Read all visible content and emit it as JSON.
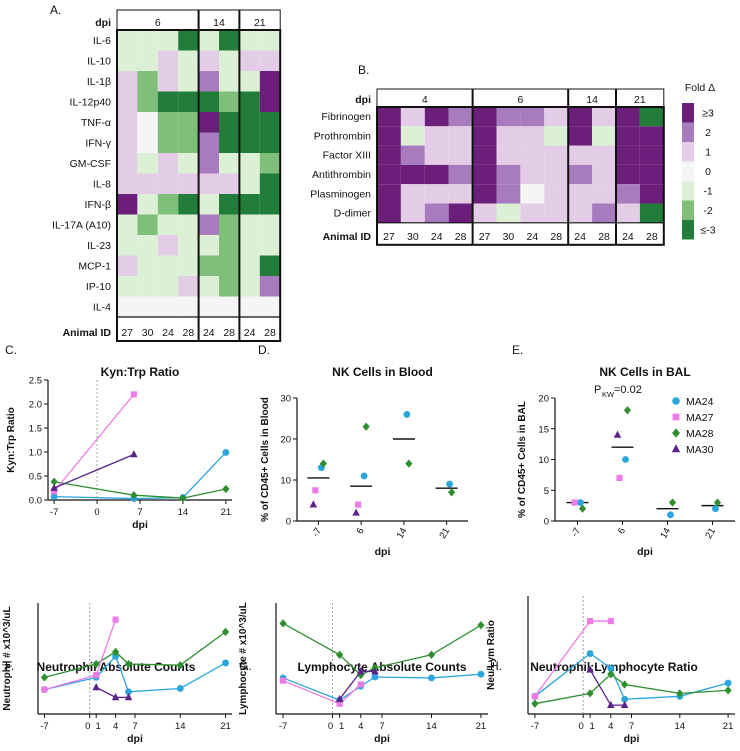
{
  "colors": {
    "pos3": "#6b1f7a",
    "pos2": "#a77bbd",
    "pos1": "#e3cde6",
    "zero": "#f5f5f5",
    "neg1": "#dcf0d6",
    "neg2": "#7fbf7a",
    "neg3": "#237d3a",
    "MA24": "#2aa6dd",
    "MA27": "#ee7ae6",
    "MA28": "#2f8f2f",
    "MA30": "#5b2487"
  },
  "chart_data": [
    {
      "panel": "A.",
      "type": "heatmap",
      "row_header": "dpi",
      "footer_label": "Animal ID",
      "dpi_groups": [
        "6",
        "14",
        "21"
      ],
      "animal_ids": [
        "27",
        "30",
        "24",
        "28",
        "24",
        "28",
        "24",
        "28"
      ],
      "rows": [
        "IL-6",
        "IL-10",
        "IL-1β",
        "IL-12p40",
        "TNF-α",
        "IFN-γ",
        "GM-CSF",
        "IL-8",
        "IFN-β",
        "IL-17A (A10)",
        "IL-23",
        "MCP-1",
        "IP-10",
        "IL-4"
      ],
      "values": [
        [
          -1,
          -1,
          -1,
          -3,
          -1,
          -3,
          -1,
          -1
        ],
        [
          -1,
          -1,
          1,
          -1,
          1,
          -1,
          1,
          1
        ],
        [
          1,
          -2,
          1,
          -1,
          2,
          -1,
          -1,
          3
        ],
        [
          1,
          -2,
          -3,
          -3,
          -3,
          -2,
          -3,
          3
        ],
        [
          1,
          0,
          -2,
          -2,
          3,
          -3,
          -3,
          -3
        ],
        [
          1,
          0,
          -2,
          -2,
          2,
          -3,
          -3,
          -3
        ],
        [
          1,
          -1,
          1,
          -1,
          2,
          -1,
          -1,
          -2
        ],
        [
          1,
          1,
          1,
          1,
          1,
          1,
          -1,
          -3
        ],
        [
          3,
          -1,
          -2,
          -3,
          -1,
          -3,
          -3,
          -3
        ],
        [
          -1,
          -2,
          -1,
          -1,
          2,
          -2,
          -1,
          -1
        ],
        [
          -1,
          -1,
          1,
          -1,
          -1,
          -2,
          -1,
          -1
        ],
        [
          1,
          -1,
          -1,
          -1,
          -2,
          -2,
          -1,
          -3
        ],
        [
          -1,
          -1,
          -1,
          1,
          -1,
          -2,
          -1,
          2
        ],
        [
          0,
          0,
          0,
          0,
          0,
          0,
          0,
          0
        ]
      ]
    },
    {
      "panel": "B.",
      "type": "heatmap",
      "row_header": "dpi",
      "footer_label": "Animal ID",
      "dpi_groups": [
        "4",
        "6",
        "14",
        "21"
      ],
      "animal_ids": [
        "27",
        "30",
        "24",
        "28",
        "27",
        "30",
        "24",
        "28",
        "24",
        "28",
        "24",
        "28"
      ],
      "rows": [
        "Fibrinogen",
        "Prothrombin",
        "Factor XIII",
        "Antithrombin",
        "Plasminogen",
        "D-dimer"
      ],
      "values": [
        [
          3,
          1,
          3,
          2,
          3,
          2,
          2,
          1,
          3,
          1,
          3,
          -3
        ],
        [
          3,
          -1,
          1,
          1,
          3,
          1,
          1,
          -1,
          3,
          -1,
          3,
          3
        ],
        [
          3,
          2,
          1,
          1,
          3,
          1,
          1,
          1,
          1,
          1,
          3,
          3
        ],
        [
          3,
          3,
          3,
          2,
          3,
          2,
          1,
          1,
          2,
          1,
          3,
          3
        ],
        [
          3,
          1,
          1,
          1,
          3,
          2,
          0,
          1,
          1,
          1,
          2,
          3
        ],
        [
          3,
          1,
          2,
          3,
          1,
          -1,
          1,
          1,
          1,
          2,
          1,
          -3
        ]
      ],
      "legend_title": "Fold Δ",
      "legend_labels": [
        "≥3",
        "2",
        "1",
        "0",
        "-1",
        "-2",
        "≤-3"
      ]
    },
    {
      "panel": "C.",
      "type": "line",
      "title": "Kyn:Trp Ratio",
      "xlabel": "dpi",
      "ylabel": "Kyn:Trp Ratio",
      "xlim": [
        -8,
        22
      ],
      "ylim": [
        0,
        2.5
      ],
      "xticks": [
        -7,
        0,
        7,
        14,
        21
      ],
      "yticks": [
        0,
        0.5,
        1,
        1.5,
        2,
        2.5
      ],
      "ytick_labels": [
        "0.0",
        "0.5",
        "1.0",
        "1.5",
        "2.0",
        "2.5"
      ],
      "vline": 0,
      "series": [
        {
          "name": "MA24",
          "x": [
            -7,
            6,
            14,
            21
          ],
          "y": [
            0.07,
            0.03,
            0.05,
            0.99
          ]
        },
        {
          "name": "MA28",
          "x": [
            -7,
            6,
            14,
            21
          ],
          "y": [
            0.38,
            0.1,
            0.04,
            0.23
          ]
        },
        {
          "name": "MA27",
          "x": [
            -7,
            6
          ],
          "y": [
            0.18,
            2.2
          ]
        },
        {
          "name": "MA30",
          "x": [
            -7,
            6
          ],
          "y": [
            0.25,
            0.95
          ]
        }
      ]
    },
    {
      "panel": "D.",
      "type": "scatter",
      "title": "NK Cells in Blood",
      "xlabel": "dpi",
      "ylabel": "% of CD45+ Cells in Blood",
      "categories": [
        "-7",
        "6",
        "14",
        "21"
      ],
      "ylim": [
        0,
        30
      ],
      "yticks": [
        0,
        10,
        20,
        30
      ],
      "medians": [
        10.5,
        8.5,
        20,
        8
      ],
      "series": [
        {
          "name": "MA24",
          "values": [
            13,
            11,
            26,
            9
          ]
        },
        {
          "name": "MA27",
          "values": [
            7.5,
            4,
            null,
            null
          ]
        },
        {
          "name": "MA28",
          "values": [
            14,
            23,
            14,
            7
          ]
        },
        {
          "name": "MA30",
          "values": [
            4,
            2,
            null,
            null
          ]
        }
      ]
    },
    {
      "panel": "E.",
      "type": "scatter",
      "title": "NK Cells in BAL",
      "xlabel": "dpi",
      "ylabel": "% of CD45+ Cells in BAL",
      "annotation_main": "P",
      "annotation_sub": "KW",
      "annotation_rest": "=0.02",
      "categories": [
        "-7",
        "6",
        "14",
        "21"
      ],
      "ylim": [
        0,
        20
      ],
      "yticks": [
        0,
        5,
        10,
        15,
        20
      ],
      "medians": [
        3,
        12,
        2,
        2.5
      ],
      "series": [
        {
          "name": "MA24",
          "values": [
            3,
            10,
            1,
            2
          ]
        },
        {
          "name": "MA27",
          "values": [
            3,
            7,
            null,
            null
          ]
        },
        {
          "name": "MA28",
          "values": [
            2,
            18,
            3,
            3
          ]
        },
        {
          "name": "MA30",
          "values": [
            null,
            14,
            null,
            null
          ]
        }
      ],
      "legend": [
        "MA24",
        "MA27",
        "MA28",
        "MA30"
      ]
    },
    {
      "panel": "F.",
      "type": "line",
      "title": "Neutrophil Absolute Counts",
      "xlabel": "dpi",
      "ylabel": "Neutrophil # x10^3/uL",
      "xlim": [
        -8,
        22
      ],
      "ylim": [
        0,
        10
      ],
      "xticks": [
        -7,
        0,
        1,
        4,
        7,
        14,
        21
      ],
      "xtick_labels": [
        "-7",
        "0",
        "1",
        "4",
        "7",
        "14",
        "21"
      ],
      "vline": 0,
      "series": [
        {
          "name": "MA24",
          "x": [
            -7,
            1,
            4,
            6,
            14,
            21
          ],
          "y": [
            2.2,
            3.3,
            5.2,
            2.0,
            2.3,
            4.6
          ]
        },
        {
          "name": "MA28",
          "x": [
            -7,
            1,
            4,
            6,
            14,
            21
          ],
          "y": [
            3.3,
            4.5,
            5.6,
            4.5,
            4.4,
            7.4
          ]
        },
        {
          "name": "MA27",
          "x": [
            -7,
            1,
            4
          ],
          "y": [
            2.2,
            3.5,
            8.5
          ]
        },
        {
          "name": "MA30",
          "x": [
            1,
            4,
            6
          ],
          "y": [
            2.4,
            1.5,
            1.5
          ]
        }
      ]
    },
    {
      "panel": "G.",
      "type": "line",
      "title": "Lymphocyte Absolute Counts",
      "xlabel": "dpi",
      "ylabel": "Lymphocyte # x10^3/uL",
      "xlim": [
        -8,
        22
      ],
      "ylim": [
        0,
        6
      ],
      "xticks": [
        -7,
        0,
        1,
        4,
        7,
        14,
        21
      ],
      "xtick_labels": [
        "-7",
        "0",
        "1",
        "4",
        "7",
        "14",
        "21"
      ],
      "vline": 0,
      "series": [
        {
          "name": "MA24",
          "x": [
            -7,
            1,
            4,
            6,
            14,
            21
          ],
          "y": [
            1.95,
            0.75,
            1.5,
            2.0,
            1.95,
            2.15
          ]
        },
        {
          "name": "MA28",
          "x": [
            -7,
            1,
            4,
            6,
            14,
            21
          ],
          "y": [
            4.9,
            3.2,
            2.1,
            2.5,
            3.2,
            4.8
          ]
        },
        {
          "name": "MA27",
          "x": [
            -7,
            1,
            4
          ],
          "y": [
            1.8,
            0.55,
            1.6
          ]
        },
        {
          "name": "MA30",
          "x": [
            1,
            4,
            6
          ],
          "y": [
            0.8,
            2.3,
            2.3
          ]
        }
      ]
    },
    {
      "panel": "H.",
      "type": "line",
      "title": "Neutrophil:Lymphocyte Ratio",
      "xlabel": "dpi",
      "ylabel": "Neu/Lym Ratio",
      "xlim": [
        -8,
        22
      ],
      "ylim": [
        0,
        8
      ],
      "xticks": [
        -7,
        0,
        1,
        4,
        7,
        14,
        21
      ],
      "xtick_labels": [
        "-7",
        "0",
        "1",
        "4",
        "7",
        "14",
        "21"
      ],
      "vline": 0,
      "series": [
        {
          "name": "MA24",
          "x": [
            -7,
            1,
            4,
            6,
            14,
            21
          ],
          "y": [
            1.2,
            4.1,
            3.1,
            1.0,
            1.2,
            2.1
          ]
        },
        {
          "name": "MA28",
          "x": [
            -7,
            1,
            4,
            6,
            14,
            21
          ],
          "y": [
            0.7,
            1.4,
            2.7,
            2.0,
            1.4,
            1.6
          ]
        },
        {
          "name": "MA27",
          "x": [
            -7,
            1,
            4
          ],
          "y": [
            1.2,
            6.3,
            6.3
          ]
        },
        {
          "name": "MA30",
          "x": [
            1,
            4,
            6
          ],
          "y": [
            3.0,
            0.6,
            0.6
          ]
        }
      ]
    }
  ]
}
